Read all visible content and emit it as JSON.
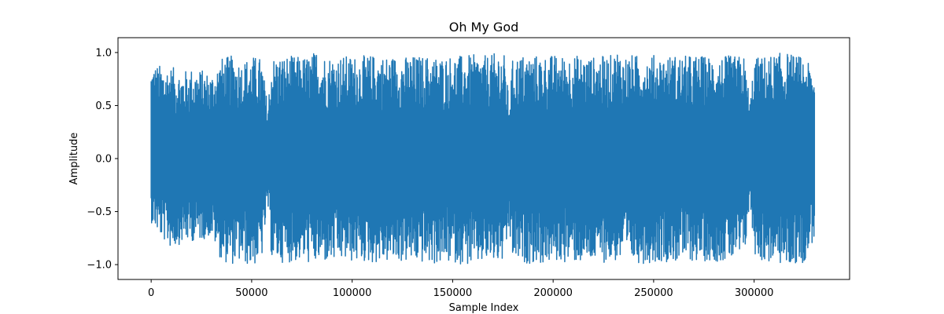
{
  "chart_data": {
    "type": "line",
    "title": "Oh My God",
    "xlabel": "Sample Index",
    "ylabel": "Amplitude",
    "xlim": [
      -16500,
      347500
    ],
    "ylim": [
      -1.14,
      1.14
    ],
    "x_ticks": [
      0,
      50000,
      100000,
      150000,
      200000,
      250000,
      300000
    ],
    "y_ticks": [
      -1.0,
      -0.5,
      0.0,
      0.5,
      1.0
    ],
    "x_tick_labels": [
      "0",
      "50000",
      "100000",
      "150000",
      "200000",
      "250000",
      "300000"
    ],
    "y_tick_labels": [
      "−1.0",
      "−0.5",
      "0.0",
      "0.5",
      "1.0"
    ],
    "grid": false,
    "series": [
      {
        "color": "#1f77b4",
        "envelope": {
          "x": [
            0,
            5000,
            10000,
            15000,
            20000,
            25000,
            30000,
            35000,
            40000,
            45000,
            50000,
            55000,
            58000,
            60000,
            65000,
            70000,
            75000,
            80000,
            82000,
            85000,
            90000,
            95000,
            100000,
            105000,
            110000,
            115000,
            120000,
            125000,
            130000,
            135000,
            140000,
            145000,
            150000,
            155000,
            160000,
            165000,
            170000,
            173000,
            176000,
            178000,
            180000,
            185000,
            190000,
            195000,
            200000,
            205000,
            210000,
            215000,
            220000,
            225000,
            230000,
            232000,
            235000,
            240000,
            245000,
            250000,
            255000,
            260000,
            265000,
            270000,
            275000,
            280000,
            285000,
            290000,
            295000,
            298000,
            300000,
            305000,
            310000,
            315000,
            320000,
            325000,
            330000
          ],
          "upper": [
            0.9,
            0.88,
            0.87,
            0.82,
            0.85,
            0.84,
            0.8,
            0.95,
            0.97,
            0.92,
            0.97,
            0.95,
            0.5,
            0.96,
            0.97,
            0.97,
            0.96,
            0.98,
            1.04,
            0.98,
            0.97,
            0.97,
            0.97,
            0.97,
            0.98,
            0.97,
            0.97,
            0.96,
            0.97,
            0.97,
            0.97,
            0.96,
            0.98,
            0.97,
            0.98,
            0.97,
            0.98,
            1.03,
            0.97,
            0.55,
            0.96,
            0.98,
            0.98,
            0.97,
            0.98,
            0.97,
            0.98,
            0.97,
            0.96,
            0.97,
            0.98,
            1.04,
            0.98,
            0.98,
            0.97,
            0.98,
            0.97,
            0.98,
            0.97,
            0.98,
            0.97,
            0.97,
            0.97,
            0.97,
            0.97,
            0.55,
            0.95,
            0.97,
            0.98,
            1.01,
            0.98,
            0.96,
            0.8
          ],
          "lower": [
            -0.6,
            -0.75,
            -0.85,
            -0.8,
            -0.78,
            -0.77,
            -0.73,
            -0.97,
            -1.0,
            -0.98,
            -1.03,
            -0.95,
            -0.45,
            -0.97,
            -0.98,
            -0.98,
            -0.97,
            -1.0,
            -1.0,
            -0.98,
            -0.99,
            -0.97,
            -0.98,
            -0.98,
            -0.99,
            -0.98,
            -0.98,
            -0.98,
            -0.98,
            -0.99,
            -1.0,
            -1.0,
            -0.98,
            -1.0,
            -1.02,
            -0.99,
            -0.98,
            -0.99,
            -0.98,
            -0.7,
            -0.97,
            -0.99,
            -0.99,
            -1.0,
            -0.98,
            -0.98,
            -0.98,
            -0.99,
            -0.98,
            -0.98,
            -0.98,
            -0.97,
            -0.98,
            -0.98,
            -0.99,
            -0.98,
            -0.97,
            -0.98,
            -0.97,
            -0.97,
            -0.97,
            -0.97,
            -0.97,
            -0.97,
            -0.96,
            -0.42,
            -0.9,
            -0.99,
            -0.98,
            -1.02,
            -1.01,
            -0.98,
            -0.75
          ]
        }
      }
    ]
  }
}
